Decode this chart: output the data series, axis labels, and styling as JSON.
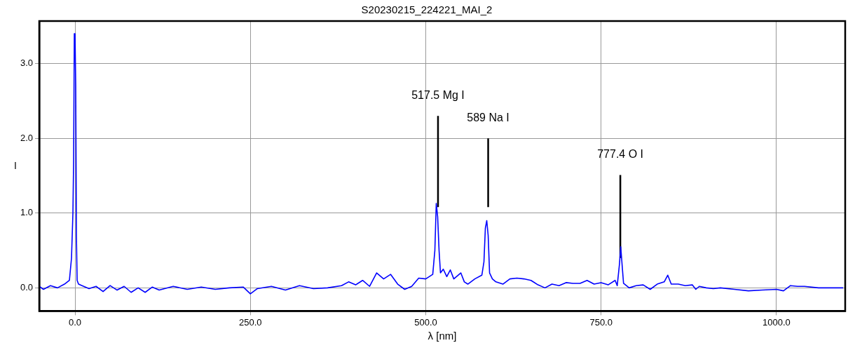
{
  "chart_data": {
    "type": "line",
    "title": "S20230215_224221_MAI_2",
    "xlabel": "λ [nm]",
    "ylabel": "I",
    "x": [
      -51,
      -45,
      -35,
      -25,
      -15,
      -8,
      -5,
      -3,
      -2,
      -1,
      0,
      1,
      2,
      3,
      5,
      10,
      20,
      30,
      40,
      50,
      60,
      70,
      80,
      90,
      100,
      110,
      120,
      140,
      160,
      180,
      200,
      220,
      240,
      250,
      260,
      280,
      300,
      320,
      340,
      360,
      380,
      390,
      400,
      410,
      420,
      430,
      440,
      450,
      460,
      470,
      480,
      490,
      500,
      505,
      510,
      513,
      515,
      517,
      519,
      521,
      525,
      530,
      535,
      540,
      550,
      555,
      560,
      570,
      580,
      583,
      585,
      587,
      589,
      591,
      595,
      600,
      610,
      620,
      630,
      640,
      650,
      660,
      670,
      680,
      690,
      700,
      710,
      720,
      730,
      740,
      750,
      760,
      770,
      773,
      776,
      778,
      780,
      782,
      790,
      800,
      810,
      820,
      830,
      840,
      845,
      850,
      860,
      870,
      880,
      885,
      890,
      900,
      910,
      920,
      940,
      960,
      980,
      1000,
      1010,
      1020,
      1030,
      1040,
      1060,
      1080,
      1095
    ],
    "series": [
      {
        "color": "#0000ff",
        "values": [
          0.02,
          -0.02,
          0.03,
          0.0,
          0.05,
          0.1,
          0.4,
          1.0,
          1.7,
          3.4,
          3.4,
          2.7,
          0.7,
          0.1,
          0.05,
          0.03,
          -0.01,
          0.02,
          -0.05,
          0.03,
          -0.03,
          0.02,
          -0.06,
          0.0,
          -0.06,
          0.01,
          -0.03,
          0.02,
          -0.02,
          0.01,
          -0.02,
          0.0,
          0.01,
          -0.08,
          -0.01,
          0.02,
          -0.03,
          0.03,
          -0.01,
          0.0,
          0.03,
          0.08,
          0.04,
          0.1,
          0.02,
          0.2,
          0.12,
          0.18,
          0.05,
          -0.02,
          0.02,
          0.13,
          0.12,
          0.15,
          0.18,
          0.5,
          1.13,
          0.95,
          0.5,
          0.2,
          0.25,
          0.15,
          0.24,
          0.12,
          0.2,
          0.08,
          0.05,
          0.12,
          0.17,
          0.35,
          0.8,
          0.9,
          0.7,
          0.2,
          0.12,
          0.08,
          0.05,
          0.12,
          0.13,
          0.12,
          0.1,
          0.04,
          0.0,
          0.05,
          0.03,
          0.07,
          0.06,
          0.06,
          0.1,
          0.05,
          0.07,
          0.04,
          0.1,
          0.03,
          0.3,
          0.55,
          0.3,
          0.06,
          0.0,
          0.03,
          0.04,
          -0.02,
          0.05,
          0.08,
          0.17,
          0.05,
          0.05,
          0.03,
          0.04,
          -0.02,
          0.02,
          0.0,
          -0.01,
          0.0,
          -0.02,
          -0.04,
          -0.03,
          -0.02,
          -0.04,
          0.03,
          0.02,
          0.02,
          0.0,
          0.0,
          0.0
        ]
      },
      {
        "type": "line",
        "color": "#000000",
        "x": [
          517.5,
          517.5
        ],
        "values": [
          1.08,
          2.3
        ]
      },
      {
        "type": "line",
        "color": "#000000",
        "x": [
          589,
          589
        ],
        "values": [
          1.08,
          2.0
        ]
      },
      {
        "type": "line",
        "color": "#000000",
        "x": [
          777.4,
          777.4
        ],
        "values": [
          0.4,
          1.51
        ]
      }
    ],
    "xlim": [
      -51,
      1098
    ],
    "ylim": [
      -0.31,
      3.57
    ],
    "xticks": [
      {
        "value": 0,
        "label": "0.0"
      },
      {
        "value": 250,
        "label": "250.0"
      },
      {
        "value": 500,
        "label": "500.0"
      },
      {
        "value": 750,
        "label": "750.0"
      },
      {
        "value": 1000,
        "label": "1000.0"
      }
    ],
    "yticks": [
      {
        "value": 0,
        "label": "0.0"
      },
      {
        "value": 1,
        "label": "1.0"
      },
      {
        "value": 2,
        "label": "2.0"
      },
      {
        "value": 3,
        "label": "3.0"
      }
    ],
    "annotations": [
      "517.5 Mg I",
      "589 Na I",
      "777.4 O I"
    ],
    "grid": true,
    "legend": false,
    "marker": "none",
    "line_style": "solid"
  }
}
